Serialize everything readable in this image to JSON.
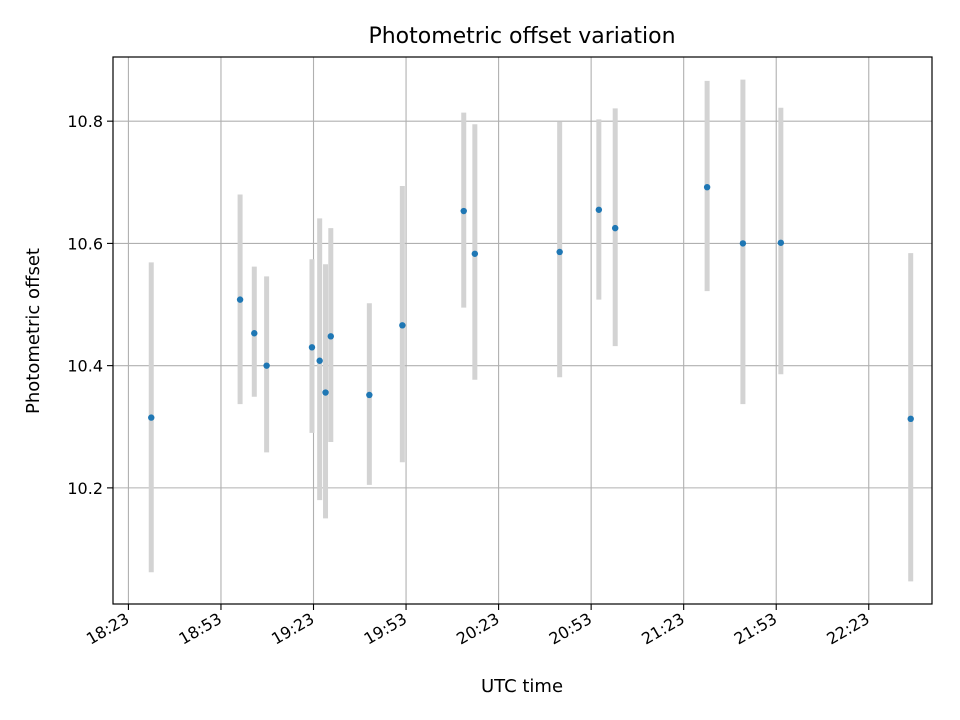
{
  "chart_data": {
    "type": "scatter",
    "title": "Photometric offset variation",
    "xlabel": "UTC time",
    "ylabel": "Photometric offset",
    "x_ticks": [
      "18:23",
      "18:53",
      "19:23",
      "19:53",
      "20:23",
      "20:53",
      "21:23",
      "21:53",
      "22:23"
    ],
    "x_tick_values_min": [
      1103,
      1133,
      1163,
      1193,
      1223,
      1253,
      1283,
      1313,
      1343
    ],
    "xlim_min": [
      1098.0,
      1363.5
    ],
    "y_ticks": [
      "10.2",
      "10.4",
      "10.6",
      "10.8"
    ],
    "y_tick_values": [
      10.2,
      10.4,
      10.6,
      10.8
    ],
    "ylim": [
      10.01,
      10.905
    ],
    "grid": true,
    "colors": {
      "marker": "#1f77b4",
      "errorbar": "#d3d3d3",
      "grid": "#b0b0b0"
    },
    "series": [
      {
        "x_min": [
          1110.4,
          1139.2,
          1143.8,
          1147.8,
          1162.5,
          1165.0,
          1166.9,
          1168.6,
          1181.1,
          1191.8,
          1211.7,
          1215.3,
          1242.8,
          1255.5,
          1260.8,
          1290.6,
          1302.2,
          1314.5,
          1356.6
        ],
        "y": [
          10.315,
          10.508,
          10.453,
          10.4,
          10.43,
          10.408,
          10.356,
          10.448,
          10.352,
          10.466,
          10.653,
          10.583,
          10.586,
          10.655,
          10.625,
          10.692,
          10.6,
          10.601,
          10.313
        ],
        "yerr_low": [
          10.062,
          10.337,
          10.349,
          10.258,
          10.29,
          10.18,
          10.15,
          10.275,
          10.205,
          10.242,
          10.495,
          10.377,
          10.381,
          10.508,
          10.432,
          10.522,
          10.337,
          10.386,
          10.047
        ],
        "yerr_high": [
          10.569,
          10.68,
          10.562,
          10.546,
          10.574,
          10.641,
          10.566,
          10.625,
          10.502,
          10.694,
          10.814,
          10.795,
          10.799,
          10.803,
          10.821,
          10.866,
          10.868,
          10.822,
          10.584
        ]
      }
    ]
  }
}
